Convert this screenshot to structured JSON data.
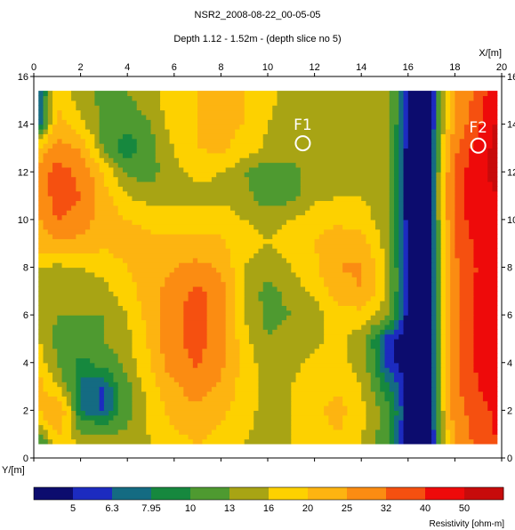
{
  "chart_data": {
    "type": "heatmap",
    "title": "NSR2_2008-08-22_00-05-05",
    "subtitle": "Depth 1.12 - 1.52m  -  (depth slice no 5)",
    "xlabel": "X/[m]",
    "ylabel": "Y/[m]",
    "xlim": [
      0,
      20
    ],
    "ylim": [
      0,
      16
    ],
    "x_ticks": [
      0,
      2,
      4,
      6,
      8,
      10,
      12,
      14,
      16,
      18,
      20
    ],
    "y_ticks": [
      0,
      2,
      4,
      6,
      8,
      10,
      12,
      14,
      16
    ],
    "data_extent": {
      "x": [
        0.2,
        19.8
      ],
      "y": [
        0.6,
        15.4
      ]
    },
    "annotations": [
      {
        "text": "F1",
        "x": 11.5,
        "y": 13.2
      },
      {
        "text": "F2",
        "x": 19.0,
        "y": 13.1
      }
    ],
    "colorbar": {
      "label": "Resistivity [ohm-m]",
      "colors": [
        "#0c0c6e",
        "#1c2bc0",
        "#146b82",
        "#16883e",
        "#4e9a30",
        "#a8a414",
        "#fdd100",
        "#fdb411",
        "#fb8c12",
        "#f55010",
        "#ee0a0a",
        "#c70b0b"
      ],
      "tick_labels": [
        "5",
        "6.3",
        "7.95",
        "10",
        "13",
        "16",
        "20",
        "25",
        "32",
        "40",
        "50"
      ]
    },
    "grid_x": [
      0.2,
      1.0,
      2.0,
      3.0,
      4.0,
      5.0,
      6.0,
      7.0,
      8.0,
      9.0,
      10.0,
      11.0,
      12.0,
      13.0,
      14.0,
      15.0,
      16.0,
      17.0,
      18.0,
      19.0,
      19.8
    ],
    "grid_y": [
      0.6,
      2.0,
      3.0,
      4.0,
      5.0,
      6.0,
      7.0,
      8.0,
      9.0,
      10.0,
      11.0,
      12.0,
      13.0,
      14.0,
      15.4
    ],
    "values": [
      [
        8.5,
        18,
        16,
        16,
        14,
        16,
        18,
        20,
        18,
        16,
        15,
        16,
        17,
        19,
        16,
        11,
        4,
        4,
        26,
        34,
        40
      ],
      [
        20,
        26,
        7.5,
        6,
        12,
        17,
        22,
        24,
        21,
        17,
        15,
        16,
        19,
        22,
        17,
        12,
        4,
        4,
        28,
        37,
        42
      ],
      [
        22,
        16,
        7.5,
        6,
        12,
        18,
        24,
        28,
        24,
        18,
        15,
        16,
        18,
        19,
        16,
        9,
        4,
        4,
        30,
        40,
        43
      ],
      [
        18,
        13,
        9,
        11,
        14,
        20,
        29,
        33,
        26,
        18,
        14,
        15,
        17,
        17,
        15,
        6,
        4,
        4,
        30,
        42,
        43
      ],
      [
        16,
        12,
        12,
        13,
        15,
        21,
        30,
        35,
        27,
        17,
        13,
        14,
        15,
        17,
        14,
        5.5,
        4,
        4,
        30,
        43,
        43
      ],
      [
        15,
        13,
        13,
        13,
        16,
        22,
        30,
        36,
        28,
        16,
        12,
        13,
        14,
        18,
        18,
        14,
        4,
        4,
        30,
        44,
        44
      ],
      [
        15,
        14,
        14,
        15,
        18,
        23,
        28,
        34,
        27,
        15,
        12,
        14,
        17,
        22,
        25,
        16,
        4,
        4,
        30,
        42,
        43
      ],
      [
        16,
        15,
        16,
        17,
        20,
        22,
        25,
        27,
        24,
        16,
        14,
        16,
        19,
        25,
        26,
        16,
        4,
        4,
        30,
        41,
        42
      ],
      [
        22,
        24,
        23,
        21,
        22,
        21,
        21,
        21,
        21,
        17,
        16,
        17,
        20,
        23,
        22,
        15,
        4,
        4,
        32,
        43,
        45
      ],
      [
        24,
        32,
        28,
        22,
        20,
        19,
        18,
        18,
        18,
        16,
        15,
        16,
        18,
        19,
        18,
        14,
        4,
        4,
        34,
        46,
        48
      ],
      [
        26,
        36,
        32,
        22,
        16,
        14,
        15,
        15,
        15,
        14,
        11,
        12,
        15,
        16,
        16,
        14,
        4,
        4,
        35,
        48,
        50
      ],
      [
        26,
        36,
        30,
        19,
        12,
        12,
        15,
        17,
        16,
        13,
        11,
        12,
        14,
        15,
        16,
        14,
        4,
        4,
        34,
        48,
        52
      ],
      [
        20,
        28,
        24,
        12,
        8,
        12,
        16,
        20,
        21,
        18,
        15,
        14,
        15,
        15,
        15,
        14,
        4,
        4,
        30,
        44,
        54
      ],
      [
        5,
        22,
        17,
        12,
        11,
        13,
        18,
        20,
        21,
        20,
        16,
        14,
        14,
        14,
        15,
        16,
        4,
        4,
        26,
        38,
        52
      ],
      [
        5,
        18,
        14,
        12,
        13,
        15,
        18,
        20,
        21,
        20,
        17,
        15,
        14,
        15,
        16,
        16,
        4,
        4,
        24,
        34,
        48
      ]
    ],
    "contour_levels": [
      0,
      5,
      6.3,
      7.95,
      10,
      13,
      16,
      20,
      25,
      32,
      40,
      50,
      1000
    ]
  }
}
